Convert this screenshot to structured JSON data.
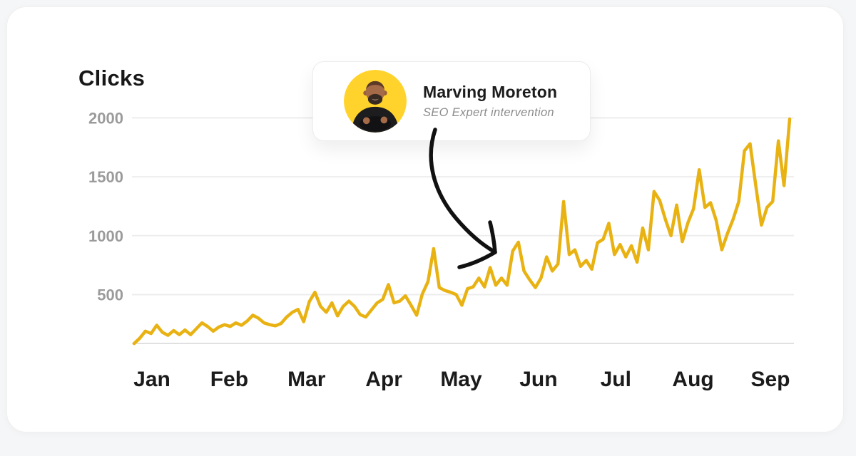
{
  "chart_data": {
    "type": "line",
    "title": "Clicks",
    "xlabel": "",
    "ylabel": "Clicks",
    "grid": true,
    "legend": false,
    "x_axis": {
      "labels": [
        "Jan",
        "Feb",
        "Mar",
        "Apr",
        "May",
        "Jun",
        "Jul",
        "Aug",
        "Sep"
      ]
    },
    "y_axis": {
      "ticks": [
        500,
        1000,
        1500,
        2000
      ],
      "range": [
        0,
        2000
      ]
    },
    "series": [
      {
        "name": "Clicks",
        "color": "#E9B213",
        "values": [
          85,
          130,
          190,
          170,
          240,
          180,
          155,
          195,
          160,
          200,
          160,
          210,
          260,
          230,
          190,
          225,
          245,
          230,
          260,
          240,
          275,
          325,
          300,
          260,
          245,
          235,
          255,
          310,
          350,
          375,
          270,
          440,
          520,
          400,
          350,
          430,
          320,
          400,
          445,
          400,
          330,
          310,
          370,
          430,
          460,
          585,
          430,
          445,
          490,
          410,
          325,
          505,
          610,
          890,
          560,
          535,
          520,
          500,
          410,
          550,
          565,
          640,
          565,
          730,
          580,
          640,
          580,
          870,
          945,
          700,
          625,
          560,
          640,
          820,
          700,
          760,
          1290,
          840,
          880,
          740,
          790,
          715,
          940,
          970,
          1105,
          840,
          925,
          820,
          915,
          775,
          1065,
          880,
          1375,
          1300,
          1140,
          1000,
          1260,
          950,
          1110,
          1230,
          1560,
          1240,
          1280,
          1130,
          880,
          1020,
          1140,
          1290,
          1720,
          1780,
          1425,
          1090,
          1240,
          1290,
          1805,
          1425,
          1990
        ]
      }
    ]
  },
  "callout": {
    "name": "Marving Moreton",
    "subtitle": "SEO Expert intervention"
  },
  "colors": {
    "line": "#E9B213",
    "avatar_bg": "#FFD32B",
    "grid": "#ededed",
    "baseline": "#e0e0e0",
    "axis_label": "#9b9b9b",
    "month_label": "#1b1b1b",
    "arrow": "#111111",
    "card_bg": "#ffffff",
    "page_bg": "#f5f6f7"
  }
}
